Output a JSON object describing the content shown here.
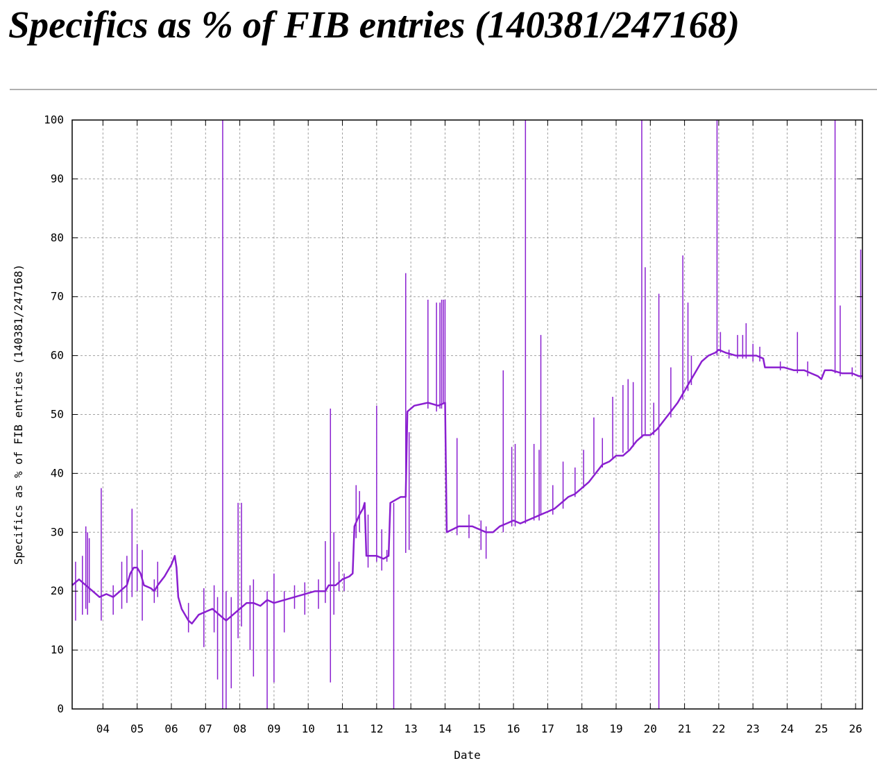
{
  "page": {
    "title": "Specifics as % of FIB entries (140381/247168)"
  },
  "chart_data": {
    "type": "line",
    "title": "",
    "xlabel": "Date",
    "ylabel": "Specifics as % of FIB entries (140381/247168)",
    "xlim": [
      3.1,
      26.2
    ],
    "ylim": [
      0,
      100
    ],
    "grid": true,
    "legend": "none",
    "line_color": "#8a1fd0",
    "x_ticks": [
      {
        "value": 4,
        "label": "04"
      },
      {
        "value": 5,
        "label": "05"
      },
      {
        "value": 6,
        "label": "06"
      },
      {
        "value": 7,
        "label": "07"
      },
      {
        "value": 8,
        "label": "08"
      },
      {
        "value": 9,
        "label": "09"
      },
      {
        "value": 10,
        "label": "10"
      },
      {
        "value": 11,
        "label": "11"
      },
      {
        "value": 12,
        "label": "12"
      },
      {
        "value": 13,
        "label": "13"
      },
      {
        "value": 14,
        "label": "14"
      },
      {
        "value": 15,
        "label": "15"
      },
      {
        "value": 16,
        "label": "16"
      },
      {
        "value": 17,
        "label": "17"
      },
      {
        "value": 18,
        "label": "18"
      },
      {
        "value": 19,
        "label": "19"
      },
      {
        "value": 20,
        "label": "20"
      },
      {
        "value": 21,
        "label": "21"
      },
      {
        "value": 22,
        "label": "22"
      },
      {
        "value": 23,
        "label": "23"
      },
      {
        "value": 24,
        "label": "24"
      },
      {
        "value": 25,
        "label": "25"
      },
      {
        "value": 26,
        "label": "26"
      }
    ],
    "y_ticks": [
      0,
      10,
      20,
      30,
      40,
      50,
      60,
      70,
      80,
      90,
      100
    ],
    "baseline": [
      [
        3.1,
        21
      ],
      [
        3.3,
        22
      ],
      [
        3.5,
        21
      ],
      [
        3.7,
        20
      ],
      [
        3.9,
        19
      ],
      [
        4.1,
        19.5
      ],
      [
        4.3,
        19
      ],
      [
        4.5,
        20
      ],
      [
        4.7,
        21
      ],
      [
        4.8,
        23
      ],
      [
        4.9,
        24
      ],
      [
        5.0,
        24
      ],
      [
        5.1,
        23
      ],
      [
        5.2,
        21
      ],
      [
        5.4,
        20.5
      ],
      [
        5.5,
        20
      ],
      [
        5.6,
        21
      ],
      [
        5.8,
        22.5
      ],
      [
        6.0,
        24.5
      ],
      [
        6.1,
        26
      ],
      [
        6.15,
        24
      ],
      [
        6.2,
        19
      ],
      [
        6.3,
        17
      ],
      [
        6.5,
        15
      ],
      [
        6.6,
        14.5
      ],
      [
        6.8,
        16
      ],
      [
        7.0,
        16.5
      ],
      [
        7.2,
        17
      ],
      [
        7.4,
        16
      ],
      [
        7.6,
        15
      ],
      [
        7.8,
        16
      ],
      [
        8.0,
        17
      ],
      [
        8.2,
        18
      ],
      [
        8.4,
        18
      ],
      [
        8.6,
        17.5
      ],
      [
        8.8,
        18.5
      ],
      [
        9.0,
        18
      ],
      [
        9.3,
        18.5
      ],
      [
        9.6,
        19
      ],
      [
        9.9,
        19.5
      ],
      [
        10.2,
        20
      ],
      [
        10.5,
        20
      ],
      [
        10.6,
        21
      ],
      [
        10.8,
        21
      ],
      [
        11.0,
        22
      ],
      [
        11.2,
        22.5
      ],
      [
        11.3,
        23
      ],
      [
        11.35,
        31
      ],
      [
        11.5,
        33
      ],
      [
        11.6,
        34
      ],
      [
        11.65,
        35
      ],
      [
        11.7,
        26
      ],
      [
        12.0,
        26
      ],
      [
        12.2,
        25.5
      ],
      [
        12.35,
        26
      ],
      [
        12.4,
        35
      ],
      [
        12.7,
        36
      ],
      [
        12.85,
        36
      ],
      [
        12.9,
        50.5
      ],
      [
        13.1,
        51.5
      ],
      [
        13.5,
        52
      ],
      [
        13.8,
        51.5
      ],
      [
        14.0,
        52
      ],
      [
        14.05,
        30
      ],
      [
        14.4,
        31
      ],
      [
        14.8,
        31
      ],
      [
        15.0,
        30.5
      ],
      [
        15.2,
        30
      ],
      [
        15.4,
        30
      ],
      [
        15.6,
        31
      ],
      [
        15.8,
        31.5
      ],
      [
        16.0,
        32
      ],
      [
        16.2,
        31.5
      ],
      [
        16.4,
        32
      ],
      [
        16.6,
        32.5
      ],
      [
        16.8,
        33
      ],
      [
        17.0,
        33.5
      ],
      [
        17.2,
        34
      ],
      [
        17.4,
        35
      ],
      [
        17.6,
        36
      ],
      [
        17.8,
        36.5
      ],
      [
        18.0,
        37.5
      ],
      [
        18.2,
        38.5
      ],
      [
        18.4,
        40
      ],
      [
        18.6,
        41.5
      ],
      [
        18.8,
        42
      ],
      [
        19.0,
        43
      ],
      [
        19.2,
        43
      ],
      [
        19.4,
        44
      ],
      [
        19.6,
        45.5
      ],
      [
        19.8,
        46.5
      ],
      [
        20.0,
        46.5
      ],
      [
        20.2,
        47.5
      ],
      [
        20.4,
        49
      ],
      [
        20.6,
        50.5
      ],
      [
        20.8,
        52
      ],
      [
        21.0,
        54
      ],
      [
        21.1,
        55
      ],
      [
        21.3,
        57
      ],
      [
        21.5,
        59
      ],
      [
        21.7,
        60
      ],
      [
        21.9,
        60.5
      ],
      [
        22.0,
        61
      ],
      [
        22.2,
        60.5
      ],
      [
        22.5,
        60
      ],
      [
        22.8,
        60
      ],
      [
        23.1,
        60
      ],
      [
        23.3,
        59.5
      ],
      [
        23.35,
        58
      ],
      [
        23.6,
        58
      ],
      [
        23.9,
        58
      ],
      [
        24.2,
        57.5
      ],
      [
        24.5,
        57.5
      ],
      [
        24.7,
        57
      ],
      [
        24.9,
        56.5
      ],
      [
        25.0,
        56
      ],
      [
        25.1,
        57.5
      ],
      [
        25.3,
        57.5
      ],
      [
        25.6,
        57
      ],
      [
        25.9,
        57
      ],
      [
        26.1,
        56.5
      ],
      [
        26.2,
        56.5
      ]
    ],
    "spikes": [
      [
        3.2,
        15,
        25
      ],
      [
        3.4,
        16,
        26
      ],
      [
        3.5,
        17,
        31
      ],
      [
        3.55,
        16,
        30
      ],
      [
        3.6,
        18,
        29
      ],
      [
        3.95,
        15,
        37.5
      ],
      [
        4.3,
        16,
        21
      ],
      [
        4.55,
        17,
        25
      ],
      [
        4.7,
        18,
        26
      ],
      [
        4.85,
        19,
        34
      ],
      [
        5.0,
        20,
        28
      ],
      [
        5.15,
        15,
        27
      ],
      [
        5.5,
        18,
        22
      ],
      [
        5.6,
        19,
        25
      ],
      [
        6.5,
        13,
        18
      ],
      [
        6.95,
        10.5,
        20.5
      ],
      [
        7.25,
        13,
        21
      ],
      [
        7.35,
        5,
        19
      ],
      [
        7.5,
        0,
        100
      ],
      [
        7.6,
        0,
        20
      ],
      [
        7.75,
        3.5,
        19
      ],
      [
        7.95,
        12,
        35
      ],
      [
        8.05,
        14,
        35
      ],
      [
        8.3,
        10,
        21
      ],
      [
        8.4,
        5.5,
        22
      ],
      [
        8.8,
        0,
        20
      ],
      [
        9.0,
        4.5,
        23
      ],
      [
        9.3,
        13,
        20
      ],
      [
        9.6,
        17,
        21
      ],
      [
        9.9,
        16,
        21.5
      ],
      [
        10.3,
        17,
        22
      ],
      [
        10.5,
        18,
        28.5
      ],
      [
        10.65,
        4.5,
        51
      ],
      [
        10.75,
        16,
        30
      ],
      [
        10.9,
        20,
        25
      ],
      [
        11.05,
        20,
        23
      ],
      [
        11.4,
        29,
        38
      ],
      [
        11.5,
        30,
        37
      ],
      [
        11.75,
        24,
        33
      ],
      [
        12.0,
        25,
        51.5
      ],
      [
        12.15,
        23.5,
        30.5
      ],
      [
        12.3,
        25,
        27
      ],
      [
        12.5,
        0,
        35
      ],
      [
        12.85,
        26.5,
        74
      ],
      [
        12.95,
        27,
        47
      ],
      [
        13.5,
        51,
        69.5
      ],
      [
        13.75,
        50.5,
        69
      ],
      [
        13.85,
        51,
        69
      ],
      [
        13.9,
        51,
        69.5
      ],
      [
        13.95,
        52,
        69.5
      ],
      [
        14.0,
        52,
        69.5
      ],
      [
        14.35,
        29.5,
        46
      ],
      [
        14.7,
        29,
        33
      ],
      [
        15.05,
        27,
        32
      ],
      [
        15.2,
        25.5,
        31
      ],
      [
        15.7,
        30,
        57.5
      ],
      [
        15.95,
        31,
        44.5
      ],
      [
        16.05,
        31,
        45
      ],
      [
        16.35,
        31.5,
        100
      ],
      [
        16.6,
        32,
        45
      ],
      [
        16.75,
        32,
        44
      ],
      [
        16.8,
        33,
        63.5
      ],
      [
        17.15,
        33,
        38
      ],
      [
        17.45,
        34,
        42
      ],
      [
        17.8,
        36,
        41
      ],
      [
        18.05,
        37.5,
        44
      ],
      [
        18.35,
        40,
        49.5
      ],
      [
        18.6,
        41,
        46
      ],
      [
        18.9,
        42.5,
        53
      ],
      [
        19.2,
        43.5,
        55
      ],
      [
        19.35,
        44,
        56
      ],
      [
        19.5,
        44.5,
        55.5
      ],
      [
        19.75,
        46,
        100
      ],
      [
        19.85,
        46.5,
        75
      ],
      [
        20.1,
        46.5,
        52
      ],
      [
        20.25,
        0,
        70.5
      ],
      [
        20.6,
        49.5,
        58
      ],
      [
        20.95,
        52.5,
        77
      ],
      [
        21.1,
        54,
        69
      ],
      [
        21.2,
        55,
        60
      ],
      [
        21.95,
        60,
        100
      ],
      [
        22.05,
        60.5,
        64
      ],
      [
        22.3,
        59.5,
        61
      ],
      [
        22.55,
        59.5,
        63.5
      ],
      [
        22.7,
        59.5,
        63.5
      ],
      [
        22.8,
        59.5,
        65.5
      ],
      [
        23.0,
        59,
        62
      ],
      [
        23.2,
        59,
        61.5
      ],
      [
        23.8,
        57.5,
        59
      ],
      [
        24.3,
        57,
        64
      ],
      [
        24.6,
        56.5,
        59
      ],
      [
        25.4,
        57,
        100
      ],
      [
        25.55,
        56.5,
        68.5
      ],
      [
        25.9,
        56.5,
        58
      ],
      [
        26.15,
        56,
        78
      ]
    ]
  }
}
